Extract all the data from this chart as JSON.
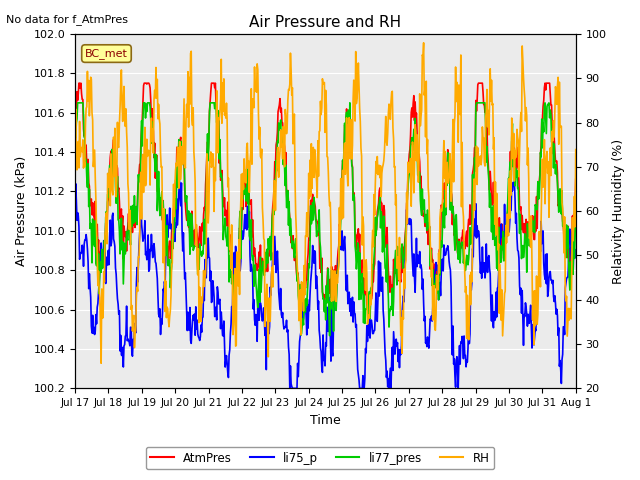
{
  "title": "Air Pressure and RH",
  "subtitle": "No data for f_AtmPres",
  "xlabel": "Time",
  "ylabel_left": "Air Pressure (kPa)",
  "ylabel_right": "Relativity Humidity (%)",
  "ylim_left": [
    100.2,
    102.0
  ],
  "ylim_right": [
    20,
    100
  ],
  "yticks_left": [
    100.2,
    100.4,
    100.6,
    100.8,
    101.0,
    101.2,
    101.4,
    101.6,
    101.8,
    102.0
  ],
  "yticks_right": [
    20,
    30,
    40,
    50,
    60,
    70,
    80,
    90,
    100
  ],
  "xtick_labels": [
    "Jul 17",
    "Jul 18",
    "Jul 19",
    "Jul 20",
    "Jul 21",
    "Jul 22",
    "Jul 23",
    "Jul 24",
    "Jul 25",
    "Jul 26",
    "Jul 27",
    "Jul 28",
    "Jul 29",
    "Jul 30",
    "Jul 31",
    "Aug 1"
  ],
  "n_days": 16,
  "colors": {
    "AtmPres": "#ff0000",
    "li75_p": "#0000ff",
    "li77_pres": "#00cc00",
    "RH": "#ffaa00"
  },
  "legend_entries": [
    "AtmPres",
    "li75_p",
    "li77_pres",
    "RH"
  ],
  "bc_met_label": "BC_met"
}
